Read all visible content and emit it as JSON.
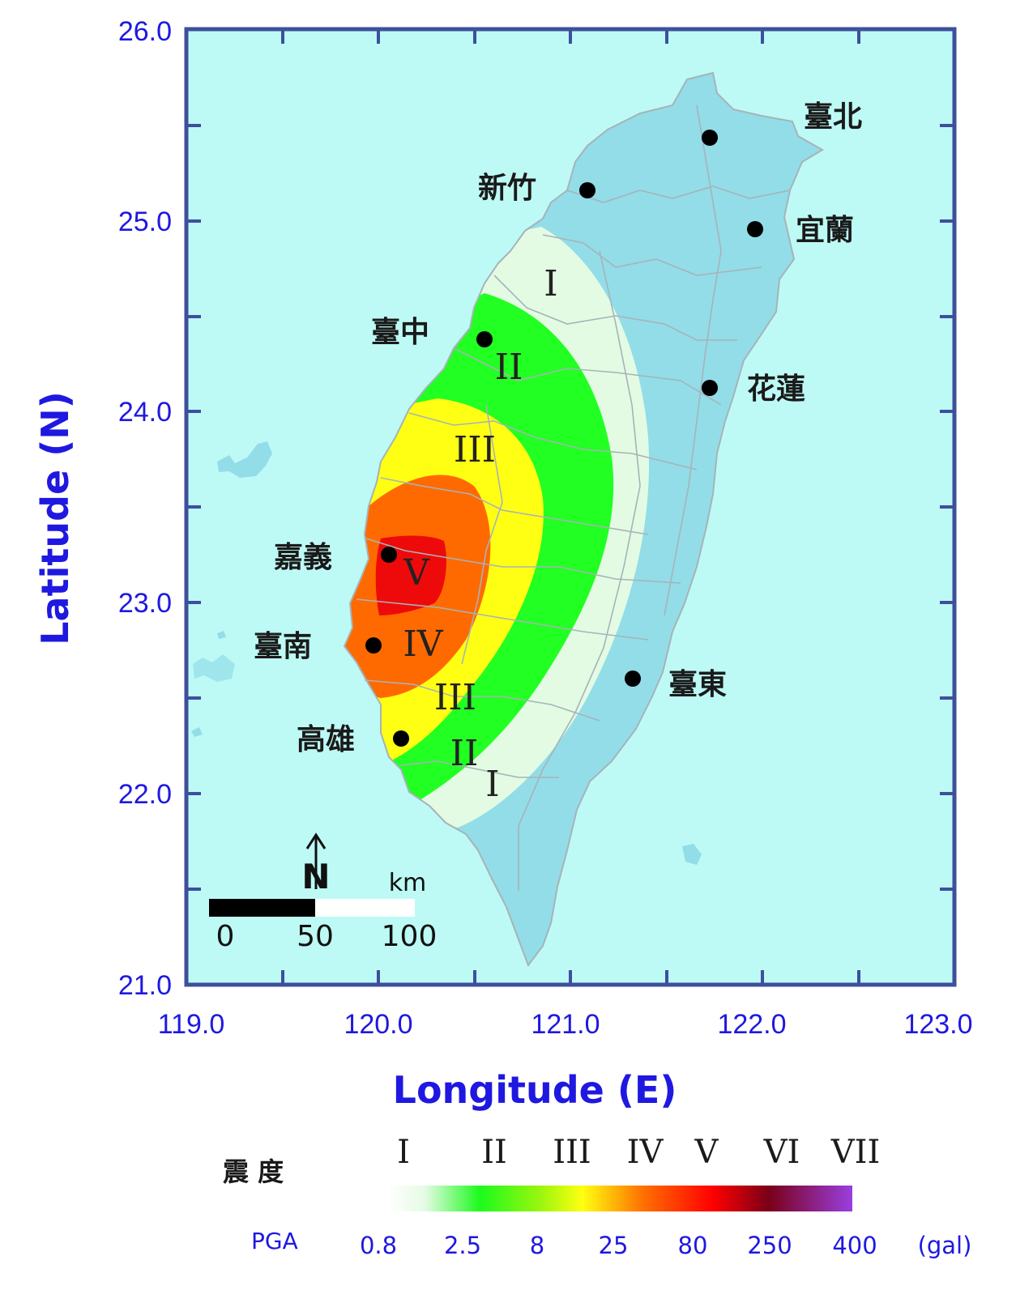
{
  "axes": {
    "x_title": "Longitude (E)",
    "y_title": "Latitude (N)",
    "x_ticks": [
      "119.0",
      "120.0",
      "121.0",
      "122.0",
      "123.0"
    ],
    "y_ticks": [
      "26.0",
      "25.0",
      "24.0",
      "23.0",
      "22.0",
      "21.0"
    ]
  },
  "cities": [
    {
      "name": "臺北",
      "lon": 121.74,
      "lat": 25.44
    },
    {
      "name": "新竹",
      "lon": 121.09,
      "lat": 25.16
    },
    {
      "name": "宜蘭",
      "lon": 121.97,
      "lat": 24.96
    },
    {
      "name": "臺中",
      "lon": 120.55,
      "lat": 24.38
    },
    {
      "name": "花蓮",
      "lon": 121.74,
      "lat": 24.12
    },
    {
      "name": "嘉義",
      "lon": 120.05,
      "lat": 23.24
    },
    {
      "name": "臺南",
      "lon": 119.96,
      "lat": 22.77
    },
    {
      "name": "臺東",
      "lon": 121.34,
      "lat": 22.61
    },
    {
      "name": "高雄",
      "lon": 120.11,
      "lat": 22.29
    }
  ],
  "intensity_zone_labels": [
    "I",
    "II",
    "III",
    "V",
    "IV",
    "III",
    "II",
    "I"
  ],
  "scale_bar": {
    "unit": "km",
    "ticks": [
      "0",
      "50",
      "100"
    ],
    "north": "N"
  },
  "legend": {
    "intensity_title": "震 度",
    "intensity_levels": [
      "I",
      "II",
      "III",
      "IV",
      "V",
      "VI",
      "VII"
    ],
    "pga_title": "PGA",
    "pga_values": [
      "0.8",
      "2.5",
      "8",
      "25",
      "80",
      "250",
      "400"
    ],
    "pga_unit": "(gal)"
  },
  "colors": {
    "sea": "#bdfaf5",
    "land": "#92dde8",
    "intensity_1": "#e3fbe3",
    "intensity_2": "#22ff22",
    "intensity_3": "#ffff14",
    "intensity_4": "#ff6a00",
    "intensity_5": "#ee0a0a",
    "frame": "#3e4f9c"
  }
}
